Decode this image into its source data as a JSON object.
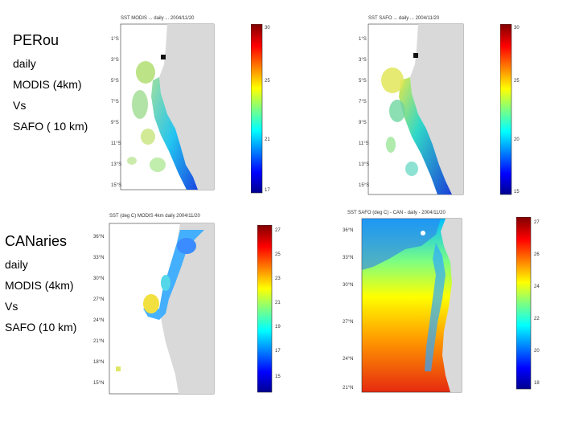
{
  "panels": {
    "perou": {
      "lines": [
        "PERou",
        "daily",
        "MODIS (4km)",
        "Vs",
        "SAFO ( 10 km)"
      ]
    },
    "canaries": {
      "lines": [
        "CANaries",
        "daily",
        "MODIS (4km)",
        "Vs",
        "SAFO (10 km)"
      ]
    }
  },
  "maps": {
    "top_left": {
      "title": "SST MODIS ... daily ... 2004/11/20",
      "ylabels": [
        "1°S",
        "3°S",
        "5°S",
        "7°S",
        "9°S",
        "11°S",
        "13°S",
        "15°S"
      ],
      "cb_ticks": [
        "30",
        "25",
        "21",
        "17"
      ]
    },
    "top_right": {
      "title": "SST SAFO ... daily ... 2004/11/20",
      "ylabels": [
        "1°S",
        "3°S",
        "5°S",
        "7°S",
        "9°S",
        "11°S",
        "13°S",
        "15°S"
      ],
      "cb_ticks": [
        "30",
        "25",
        "20",
        "15"
      ]
    },
    "bottom_left": {
      "title": "SST (deg C) MODIS 4km daily 2004/11/20",
      "ylabels": [
        "36°N",
        "33°N",
        "30°N",
        "27°N",
        "24°N",
        "21°N",
        "18°N",
        "15°N"
      ],
      "cb_ticks": [
        "27",
        "25",
        "23",
        "21",
        "19",
        "17",
        "15"
      ]
    },
    "bottom_right": {
      "title": "SST SAFO (deg C) - CAN - daily - 2004/11/20",
      "ylabels": [
        "36°N",
        "33°N",
        "30°N",
        "27°N",
        "24°N",
        "21°N"
      ],
      "cb_ticks": [
        "27",
        "26",
        "24",
        "22",
        "20",
        "18"
      ]
    }
  },
  "colors": {
    "land": "#d9d9d9",
    "cold": "#1a2cd1",
    "warm": "#d8281b"
  }
}
